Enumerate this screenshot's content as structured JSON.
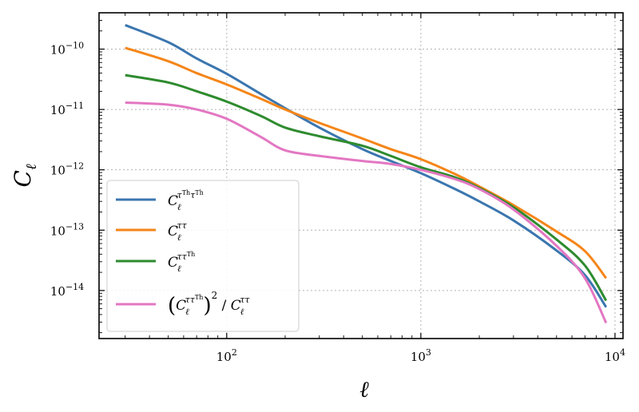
{
  "chart_data": {
    "type": "line",
    "xlabel": "ℓ",
    "ylabel": "C_ℓ",
    "xscale": "log",
    "yscale": "log",
    "xlim": [
      22,
      11000
    ],
    "ylim": [
      1.6e-15,
      4e-10
    ],
    "grid": true,
    "legend_position": "lower-left",
    "x_ticks": [
      {
        "value": 100,
        "base": "10",
        "exp": "2"
      },
      {
        "value": 1000,
        "base": "10",
        "exp": "3"
      },
      {
        "value": 10000,
        "base": "10",
        "exp": "4"
      }
    ],
    "y_ticks": [
      {
        "value": 1e-10,
        "base": "10",
        "exp": "−10"
      },
      {
        "value": 1e-11,
        "base": "10",
        "exp": "−11"
      },
      {
        "value": 1e-12,
        "base": "10",
        "exp": "−12"
      },
      {
        "value": 1e-13,
        "base": "10",
        "exp": "−13"
      },
      {
        "value": 1e-14,
        "base": "10",
        "exp": "−14"
      }
    ],
    "x": [
      30,
      50,
      70,
      100,
      150,
      200,
      300,
      500,
      700,
      1000,
      1500,
      2000,
      3000,
      5000,
      7000,
      9000
    ],
    "series": [
      {
        "name": "C_ℓ^{τ^Th τ^Th}",
        "color": "#3b76af",
        "values": [
          2.5e-10,
          1.3e-10,
          7e-11,
          3.9e-11,
          1.8e-11,
          1.05e-11,
          5e-12,
          2.2e-12,
          1.4e-12,
          8.8e-13,
          4.8e-13,
          3e-13,
          1.45e-13,
          4.6e-14,
          1.8e-14,
          5.3e-15
        ]
      },
      {
        "name": "C_ℓ^{ττ}",
        "color": "#f58518",
        "values": [
          1.05e-10,
          6.3e-11,
          4e-11,
          2.6e-11,
          1.5e-11,
          1e-11,
          6e-12,
          3.3e-12,
          2.2e-12,
          1.5e-12,
          8.5e-13,
          5.3e-13,
          2.6e-13,
          9.5e-14,
          4.5e-14,
          1.6e-14
        ]
      },
      {
        "name": "C_ℓ^{ττ^Th}",
        "color": "#2e8b2e",
        "values": [
          3.7e-11,
          2.8e-11,
          2e-11,
          1.35e-11,
          7.8e-12,
          5e-12,
          3.6e-12,
          2.5e-12,
          1.7e-12,
          1.1e-12,
          7.5e-13,
          5e-13,
          2.4e-13,
          7e-14,
          2.6e-14,
          6.8e-15
        ]
      },
      {
        "name": "(C_ℓ^{ττ^Th})^2 / C_ℓ^{ττ}",
        "color": "#e377c2",
        "values": [
          1.3e-11,
          1.2e-11,
          1e-11,
          7e-12,
          3.5e-12,
          2.1e-12,
          1.7e-12,
          1.4e-12,
          1.25e-12,
          1e-12,
          7e-13,
          4.8e-13,
          2.2e-13,
          5.5e-14,
          1.6e-14,
          2.9e-15
        ]
      }
    ]
  }
}
